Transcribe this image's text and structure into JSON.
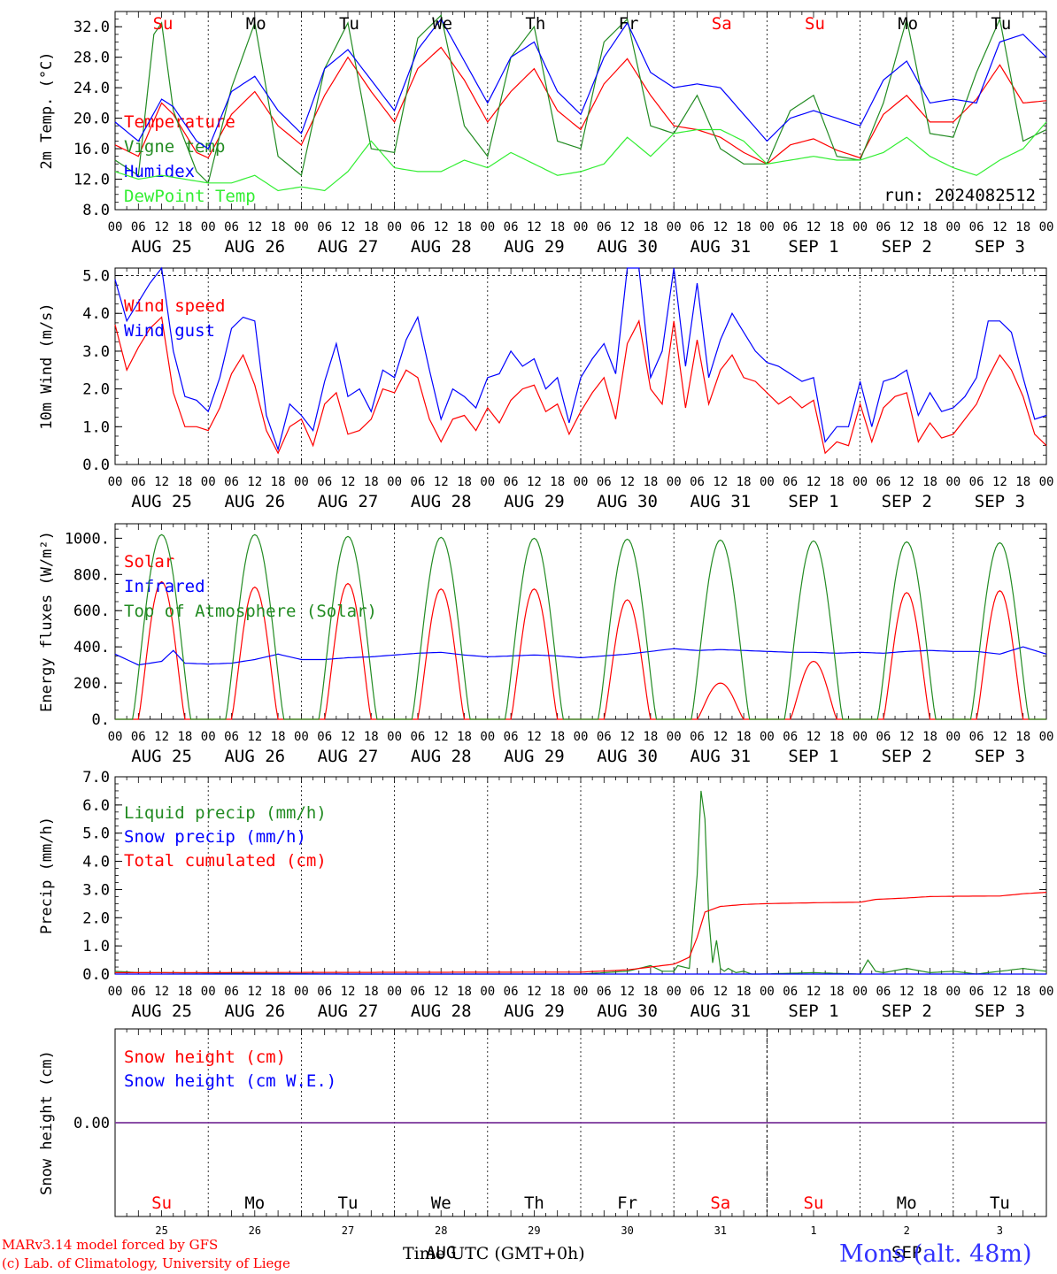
{
  "footer": {
    "credit_line1": "MARv3.14 model forced by GFS",
    "credit_line2": "(c) Lab. of Climatology, University of Liege",
    "location": "Mons (alt. 48m)",
    "time_axis_label": "Time UTC (GMT+0h)"
  },
  "run_label": "run: 2024082512",
  "days": {
    "dates": [
      "AUG 25",
      "AUG 26",
      "AUG 27",
      "AUG 28",
      "AUG 29",
      "AUG 30",
      "AUG 31",
      "SEP  1",
      "SEP  2",
      "SEP  3"
    ],
    "weekdays": [
      "Su",
      "Mo",
      "Tu",
      "We",
      "Th",
      "Fr",
      "Sa",
      "Su",
      "Mo",
      "Tu"
    ],
    "weekday_colors": [
      "#ff0000",
      "#000000",
      "#000000",
      "#000000",
      "#000000",
      "#000000",
      "#ff0000",
      "#ff0000",
      "#000000",
      "#000000"
    ],
    "bottom_day_numbers": [
      "25",
      "26",
      "27",
      "28",
      "29",
      "30",
      "31",
      "1",
      "2",
      "3"
    ],
    "bottom_month_labels": [
      "AUG",
      "SEP"
    ],
    "hour_labels": [
      "00",
      "06",
      "12",
      "18"
    ],
    "final_hour_label": "00"
  },
  "chart_data": [
    {
      "type": "line",
      "ylabel": "2m Temp. (°C)",
      "ylim": [
        8,
        34
      ],
      "yticks": [
        "8.0",
        "12.0",
        "16.0",
        "20.0",
        "24.0",
        "28.0",
        "32.0"
      ],
      "x_unit": "hours since AUG 25 00 UTC",
      "legend_placement": "top-left",
      "series": [
        {
          "name": "Temperature",
          "color": "#ff0000",
          "x": [
            0,
            6,
            12,
            15,
            21,
            24,
            30,
            36,
            42,
            48,
            54,
            60,
            66,
            72,
            78,
            84,
            90,
            96,
            102,
            108,
            114,
            120,
            126,
            132,
            138,
            144,
            150,
            156,
            162,
            168,
            174,
            180,
            186,
            192,
            198,
            204,
            210,
            216,
            222,
            228,
            234,
            240
          ],
          "values": [
            16.5,
            15.0,
            22.0,
            20.5,
            15.5,
            14.8,
            20.5,
            23.5,
            19.0,
            16.5,
            23.0,
            28.0,
            23.5,
            19.5,
            26.5,
            29.3,
            25.0,
            19.5,
            23.5,
            26.5,
            21.0,
            18.5,
            24.5,
            27.8,
            23.0,
            19.0,
            18.5,
            17.5,
            15.5,
            14.0,
            16.5,
            17.3,
            15.8,
            14.8,
            20.5,
            23.0,
            19.5,
            19.5,
            22.5,
            27.0,
            22.0,
            22.3
          ]
        },
        {
          "name": "Vigne temp",
          "color": "#228b22",
          "x": [
            0,
            6,
            10,
            12,
            15,
            21,
            24,
            30,
            36,
            42,
            48,
            54,
            60,
            66,
            72,
            78,
            84,
            90,
            96,
            102,
            108,
            114,
            120,
            126,
            132,
            138,
            144,
            150,
            156,
            162,
            168,
            174,
            180,
            186,
            192,
            198,
            204,
            210,
            216,
            222,
            228,
            234,
            240
          ],
          "values": [
            14.5,
            12.5,
            31.0,
            32.5,
            21.0,
            13.0,
            11.5,
            24.0,
            32.5,
            15.0,
            12.5,
            26.5,
            32.5,
            16.0,
            15.5,
            30.5,
            33.5,
            19.0,
            15.0,
            28.0,
            32.0,
            17.0,
            16.0,
            30.0,
            33.0,
            19.0,
            18.0,
            23.0,
            16.0,
            14.0,
            14.0,
            21.0,
            23.0,
            15.0,
            14.5,
            22.0,
            33.0,
            18.0,
            17.5,
            26.0,
            33.0,
            17.0,
            18.5
          ]
        },
        {
          "name": "Humidex",
          "color": "#0000ff",
          "x": [
            0,
            6,
            12,
            15,
            21,
            24,
            30,
            36,
            42,
            48,
            54,
            60,
            66,
            72,
            78,
            84,
            90,
            96,
            102,
            108,
            114,
            120,
            126,
            132,
            138,
            144,
            150,
            156,
            162,
            168,
            174,
            180,
            186,
            192,
            198,
            204,
            210,
            216,
            222,
            228,
            234,
            240
          ],
          "values": [
            19.5,
            17.0,
            22.5,
            21.5,
            17.0,
            16.0,
            23.5,
            25.5,
            21.0,
            18.0,
            26.5,
            29.0,
            25.0,
            21.0,
            29.0,
            33.0,
            27.5,
            22.0,
            28.0,
            30.0,
            23.5,
            20.5,
            28.0,
            32.5,
            26.0,
            24.0,
            24.5,
            24.0,
            20.5,
            17.0,
            20.0,
            21.0,
            20.0,
            19.0,
            25.0,
            27.5,
            22.0,
            22.5,
            22.0,
            30.0,
            31.0,
            28.0
          ]
        },
        {
          "name": "DewPoint Temp",
          "color": "#33ee33",
          "x": [
            0,
            6,
            12,
            18,
            24,
            30,
            36,
            42,
            48,
            54,
            60,
            66,
            72,
            78,
            84,
            90,
            96,
            102,
            108,
            114,
            120,
            126,
            132,
            138,
            144,
            150,
            156,
            162,
            168,
            174,
            180,
            186,
            192,
            198,
            204,
            210,
            216,
            222,
            228,
            234,
            240
          ],
          "values": [
            13.0,
            12.0,
            12.5,
            12.0,
            11.5,
            11.5,
            12.5,
            10.5,
            11.0,
            10.5,
            13.0,
            17.0,
            13.5,
            13.0,
            13.0,
            14.5,
            13.5,
            15.5,
            14.0,
            12.5,
            13.0,
            14.0,
            17.5,
            15.0,
            18.0,
            18.5,
            18.5,
            17.0,
            14.0,
            14.5,
            15.0,
            14.5,
            14.5,
            15.5,
            17.5,
            15.0,
            13.5,
            12.5,
            14.5,
            16.0,
            19.5
          ]
        }
      ],
      "annotation": "run: 2024082512"
    },
    {
      "type": "line",
      "ylabel": "10m Wind (m/s)",
      "ylim": [
        0,
        5.2
      ],
      "yticks": [
        "0.0",
        "1.0",
        "2.0",
        "3.0",
        "4.0",
        "5.0"
      ],
      "reference_line": 5.0,
      "legend_placement": "top-left",
      "series": [
        {
          "name": "Wind speed",
          "color": "#ff0000",
          "x": [
            0,
            3,
            6,
            9,
            12,
            15,
            18,
            21,
            24,
            27,
            30,
            33,
            36,
            39,
            42,
            45,
            48,
            51,
            54,
            57,
            60,
            63,
            66,
            69,
            72,
            75,
            78,
            81,
            84,
            87,
            90,
            93,
            96,
            99,
            102,
            105,
            108,
            111,
            114,
            117,
            120,
            123,
            126,
            129,
            132,
            135,
            138,
            141,
            144,
            147,
            150,
            153,
            156,
            159,
            162,
            165,
            168,
            171,
            174,
            177,
            180,
            183,
            186,
            189,
            192,
            195,
            198,
            201,
            204,
            207,
            210,
            213,
            216,
            219,
            222,
            225,
            228,
            231,
            234,
            237,
            240
          ],
          "values": [
            3.7,
            2.5,
            3.1,
            3.6,
            3.9,
            1.9,
            1.0,
            1.0,
            0.9,
            1.5,
            2.4,
            2.9,
            2.1,
            0.9,
            0.3,
            1.0,
            1.2,
            0.5,
            1.6,
            1.9,
            0.8,
            0.9,
            1.2,
            2.0,
            1.9,
            2.5,
            2.3,
            1.2,
            0.6,
            1.2,
            1.3,
            0.9,
            1.5,
            1.1,
            1.7,
            2.0,
            2.1,
            1.4,
            1.6,
            0.8,
            1.4,
            1.9,
            2.3,
            1.2,
            3.2,
            3.8,
            2.0,
            1.6,
            3.8,
            1.5,
            3.3,
            1.6,
            2.5,
            2.9,
            2.3,
            2.2,
            1.9,
            1.6,
            1.8,
            1.5,
            1.7,
            0.3,
            0.6,
            0.5,
            1.6,
            0.6,
            1.5,
            1.8,
            1.9,
            0.6,
            1.1,
            0.7,
            0.8,
            1.2,
            1.6,
            2.3,
            2.9,
            2.5,
            1.8,
            0.8,
            0.5
          ]
        },
        {
          "name": "Wind gust",
          "color": "#0000ff",
          "x": [
            0,
            3,
            6,
            9,
            12,
            15,
            18,
            21,
            24,
            27,
            30,
            33,
            36,
            39,
            42,
            45,
            48,
            51,
            54,
            57,
            60,
            63,
            66,
            69,
            72,
            75,
            78,
            81,
            84,
            87,
            90,
            93,
            96,
            99,
            102,
            105,
            108,
            111,
            114,
            117,
            120,
            123,
            126,
            129,
            132,
            135,
            138,
            141,
            144,
            147,
            150,
            153,
            156,
            159,
            162,
            165,
            168,
            171,
            174,
            177,
            180,
            183,
            186,
            189,
            192,
            195,
            198,
            201,
            204,
            207,
            210,
            213,
            216,
            219,
            222,
            225,
            228,
            231,
            234,
            237,
            240
          ],
          "values": [
            4.9,
            3.8,
            4.3,
            4.8,
            5.3,
            3.0,
            1.8,
            1.7,
            1.4,
            2.3,
            3.6,
            3.9,
            3.8,
            1.3,
            0.4,
            1.6,
            1.3,
            0.9,
            2.2,
            3.2,
            1.8,
            2.0,
            1.4,
            2.5,
            2.3,
            3.3,
            3.9,
            2.5,
            1.2,
            2.0,
            1.8,
            1.5,
            2.3,
            2.4,
            3.0,
            2.6,
            2.8,
            2.0,
            2.3,
            1.1,
            2.3,
            2.8,
            3.2,
            2.4,
            5.2,
            5.3,
            2.3,
            3.0,
            5.2,
            2.6,
            4.8,
            2.3,
            3.3,
            4.0,
            3.5,
            3.0,
            2.7,
            2.6,
            2.4,
            2.2,
            2.3,
            0.6,
            1.0,
            1.0,
            2.2,
            1.0,
            2.2,
            2.3,
            2.5,
            1.3,
            1.9,
            1.4,
            1.5,
            1.8,
            2.3,
            3.8,
            3.8,
            3.5,
            2.3,
            1.2,
            1.3
          ]
        }
      ]
    },
    {
      "type": "line",
      "ylabel": "Energy fluxes (W/m²)",
      "ylim": [
        0,
        1080
      ],
      "yticks": [
        "0.",
        "200.",
        "400.",
        "600.",
        "800.",
        "1000."
      ],
      "legend_placement": "top-left",
      "series": [
        {
          "name": "Solar",
          "color": "#ff0000",
          "peaks": [
            760,
            730,
            750,
            720,
            720,
            660,
            200,
            320,
            700,
            710
          ]
        },
        {
          "name": "Infrared",
          "color": "#0000ff",
          "x": [
            0,
            6,
            12,
            15,
            18,
            24,
            30,
            36,
            42,
            48,
            54,
            60,
            66,
            72,
            78,
            84,
            90,
            96,
            102,
            108,
            114,
            120,
            126,
            132,
            138,
            144,
            150,
            156,
            162,
            168,
            174,
            180,
            186,
            192,
            198,
            204,
            210,
            216,
            222,
            228,
            234,
            240
          ],
          "values": [
            360,
            300,
            320,
            380,
            310,
            305,
            310,
            330,
            360,
            330,
            330,
            340,
            345,
            355,
            365,
            370,
            355,
            345,
            350,
            355,
            350,
            340,
            350,
            360,
            375,
            390,
            380,
            385,
            380,
            375,
            370,
            370,
            365,
            370,
            365,
            375,
            380,
            375,
            375,
            360,
            400,
            360
          ]
        },
        {
          "name": "Top of Atmosphere (Solar)",
          "color": "#228b22",
          "peaks": [
            1020,
            1020,
            1010,
            1005,
            1000,
            995,
            990,
            985,
            980,
            975
          ]
        }
      ]
    },
    {
      "type": "line",
      "ylabel": "Precip (mm/h)",
      "ylim": [
        0,
        7
      ],
      "yticks": [
        "0.0",
        "1.0",
        "2.0",
        "3.0",
        "4.0",
        "5.0",
        "6.0",
        "7.0"
      ],
      "legend_placement": "top-left",
      "series": [
        {
          "name": "Liquid precip (mm/h)",
          "color": "#228b22",
          "x": [
            0,
            6,
            12,
            60,
            120,
            132,
            138,
            141,
            144,
            145,
            148,
            150,
            151,
            152,
            153,
            154,
            155,
            156,
            157,
            158,
            160,
            162,
            164,
            166,
            180,
            192,
            194,
            196,
            198,
            204,
            210,
            216,
            222,
            228,
            234,
            240
          ],
          "values": [
            0.1,
            0.05,
            0.05,
            0,
            0,
            0.1,
            0.3,
            0.1,
            0.1,
            0.3,
            0.2,
            3.5,
            6.5,
            5.5,
            2.0,
            0.4,
            1.2,
            0.2,
            0.1,
            0.2,
            0.05,
            0.1,
            0,
            0,
            0.05,
            0,
            0.5,
            0.1,
            0.05,
            0.2,
            0.05,
            0.1,
            0,
            0.1,
            0.2,
            0.1
          ]
        },
        {
          "name": "Snow precip (mm/h)",
          "color": "#0000ff",
          "x": [
            0,
            240
          ],
          "values": [
            0,
            0
          ]
        },
        {
          "name": "Total cumulated (cm)",
          "color": "#ff0000",
          "x": [
            0,
            120,
            132,
            138,
            144,
            148,
            150,
            152,
            156,
            162,
            168,
            180,
            192,
            196,
            204,
            210,
            216,
            228,
            234,
            240
          ],
          "values": [
            0.05,
            0.07,
            0.15,
            0.25,
            0.35,
            0.6,
            1.3,
            2.2,
            2.4,
            2.47,
            2.5,
            2.53,
            2.55,
            2.65,
            2.7,
            2.75,
            2.76,
            2.77,
            2.85,
            2.9
          ]
        }
      ]
    },
    {
      "type": "line",
      "ylabel": "Snow height (cm)",
      "ylim": [
        -1,
        1
      ],
      "yticks": [
        "0.00"
      ],
      "legend_placement": "top-left",
      "series": [
        {
          "name": "Snow height (cm)",
          "color": "#ff0000",
          "x": [
            0,
            240
          ],
          "values": [
            0,
            0
          ]
        },
        {
          "name": "Snow height (cm W.E.)",
          "color": "#0000ff",
          "x": [
            0,
            240
          ],
          "values": [
            0,
            0
          ]
        }
      ]
    }
  ]
}
